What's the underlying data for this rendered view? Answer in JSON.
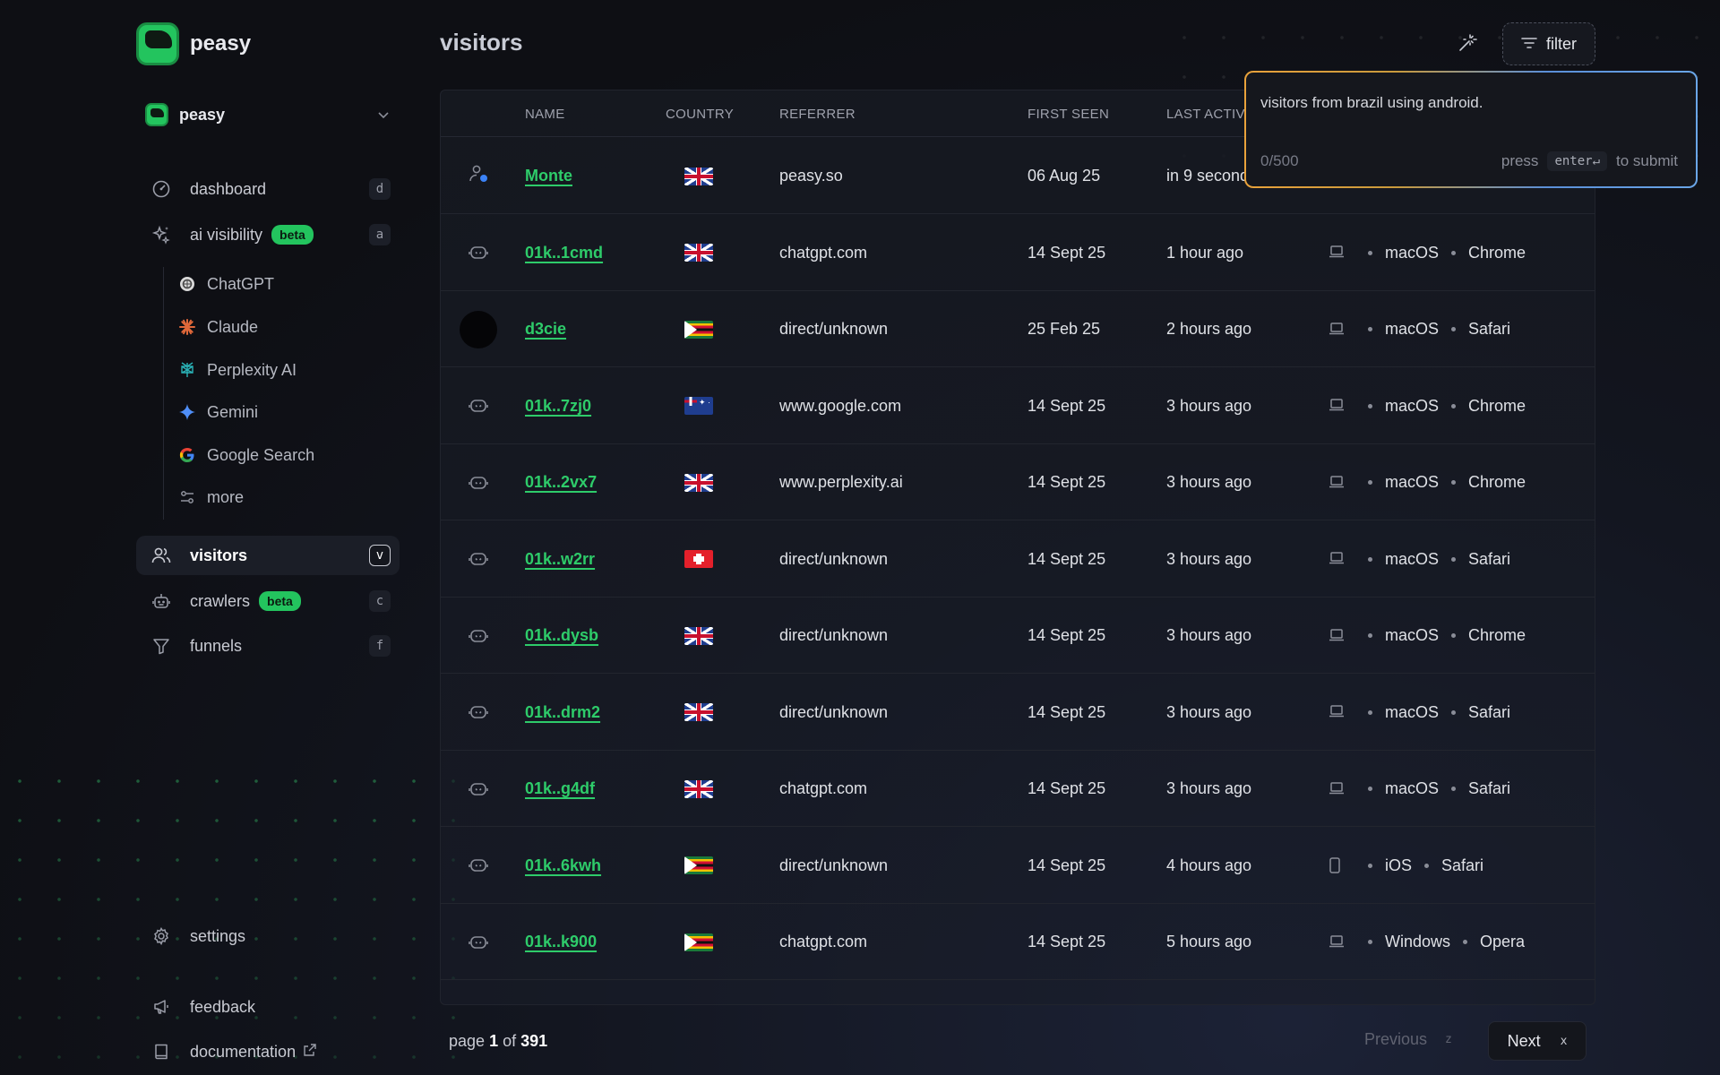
{
  "brand": {
    "name": "peasy"
  },
  "workspace": {
    "name": "peasy"
  },
  "nav": {
    "dashboard": {
      "label": "dashboard",
      "key": "d"
    },
    "ai_visibility": {
      "label": "ai visibility",
      "badge": "beta",
      "key": "a"
    },
    "sub": [
      {
        "label": "ChatGPT",
        "icon": "chatgpt-icon"
      },
      {
        "label": "Claude",
        "icon": "claude-icon"
      },
      {
        "label": "Perplexity AI",
        "icon": "perplexity-icon"
      },
      {
        "label": "Gemini",
        "icon": "gemini-icon"
      },
      {
        "label": "Google Search",
        "icon": "google-icon"
      },
      {
        "label": "more",
        "icon": "sliders-icon"
      }
    ],
    "visitors": {
      "label": "visitors",
      "key": "v"
    },
    "crawlers": {
      "label": "crawlers",
      "badge": "beta",
      "key": "c"
    },
    "funnels": {
      "label": "funnels",
      "key": "f"
    },
    "settings": {
      "label": "settings"
    },
    "feedback": {
      "label": "feedback"
    },
    "documentation": {
      "label": "documentation"
    }
  },
  "header": {
    "title": "visitors",
    "filter_label": "filter"
  },
  "filter_popover": {
    "query": "visitors from brazil using android.",
    "count": "0/500",
    "hint_pre": "press",
    "hint_key": "enter↵",
    "hint_post": "to submit"
  },
  "table": {
    "columns": {
      "name": "NAME",
      "country": "COUNTRY",
      "referrer": "REFERRER",
      "first_seen": "FIRST SEEN",
      "last_active": "LAST ACTIV"
    },
    "rows": [
      {
        "avatar": "user",
        "name": "Monte",
        "flag": "gb",
        "referrer": "peasy.so",
        "first_seen": "06 Aug 25",
        "last_active": "in 9 second",
        "device": "",
        "os": "",
        "browser": ""
      },
      {
        "avatar": "bot",
        "name": "01k..1cmd",
        "flag": "gb",
        "referrer": "chatgpt.com",
        "first_seen": "14 Sept 25",
        "last_active": "1 hour ago",
        "device": "laptop",
        "os": "macOS",
        "browser": "Chrome"
      },
      {
        "avatar": "circle",
        "name": "d3cie",
        "flag": "zw",
        "referrer": "direct/unknown",
        "first_seen": "25 Feb 25",
        "last_active": "2 hours ago",
        "device": "laptop",
        "os": "macOS",
        "browser": "Safari"
      },
      {
        "avatar": "bot",
        "name": "01k..7zj0",
        "flag": "au",
        "referrer": "www.google.com",
        "first_seen": "14 Sept 25",
        "last_active": "3 hours ago",
        "device": "laptop",
        "os": "macOS",
        "browser": "Chrome"
      },
      {
        "avatar": "bot",
        "name": "01k..2vx7",
        "flag": "gb",
        "referrer": "www.perplexity.ai",
        "first_seen": "14 Sept 25",
        "last_active": "3 hours ago",
        "device": "laptop",
        "os": "macOS",
        "browser": "Chrome"
      },
      {
        "avatar": "bot",
        "name": "01k..w2rr",
        "flag": "ch",
        "referrer": "direct/unknown",
        "first_seen": "14 Sept 25",
        "last_active": "3 hours ago",
        "device": "laptop",
        "os": "macOS",
        "browser": "Safari"
      },
      {
        "avatar": "bot",
        "name": "01k..dysb",
        "flag": "gb",
        "referrer": "direct/unknown",
        "first_seen": "14 Sept 25",
        "last_active": "3 hours ago",
        "device": "laptop",
        "os": "macOS",
        "browser": "Chrome"
      },
      {
        "avatar": "bot",
        "name": "01k..drm2",
        "flag": "gb",
        "referrer": "direct/unknown",
        "first_seen": "14 Sept 25",
        "last_active": "3 hours ago",
        "device": "laptop",
        "os": "macOS",
        "browser": "Safari"
      },
      {
        "avatar": "bot",
        "name": "01k..g4df",
        "flag": "gb",
        "referrer": "chatgpt.com",
        "first_seen": "14 Sept 25",
        "last_active": "3 hours ago",
        "device": "laptop",
        "os": "macOS",
        "browser": "Safari"
      },
      {
        "avatar": "bot",
        "name": "01k..6kwh",
        "flag": "zw",
        "referrer": "direct/unknown",
        "first_seen": "14 Sept 25",
        "last_active": "4 hours ago",
        "device": "phone",
        "os": "iOS",
        "browser": "Safari"
      },
      {
        "avatar": "bot",
        "name": "01k..k900",
        "flag": "zw",
        "referrer": "chatgpt.com",
        "first_seen": "14 Sept 25",
        "last_active": "5 hours ago",
        "device": "laptop",
        "os": "Windows",
        "browser": "Opera"
      }
    ]
  },
  "pagination": {
    "page_word": "page",
    "current": "1",
    "of_word": "of",
    "total": "391",
    "prev_label": "Previous",
    "prev_key": "z",
    "next_label": "Next",
    "next_key": "x"
  }
}
